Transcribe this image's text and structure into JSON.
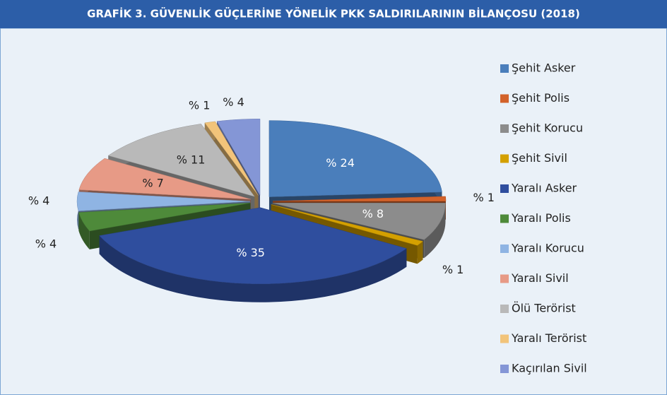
{
  "chart_data": {
    "type": "pie",
    "title": "GRAFİK 3. GÜVENLİK GÜÇLERİNE YÖNELİK PKK SALDIRILARININ BİLANÇOSU (2018)",
    "categories": [
      "Şehit Asker",
      "Şehit Polis",
      "Şehit Korucu",
      "Şehit Sivil",
      "Yaralı Asker",
      "Yaralı Polis",
      "Yaralı Korucu",
      "Yaralı Sivil",
      "Ölü Terörist",
      "Yaralı Terörist",
      "Kaçırılan Sivil"
    ],
    "values": [
      24,
      1,
      8,
      1,
      35,
      4,
      4,
      7,
      11,
      1,
      4
    ],
    "value_labels": [
      "% 24",
      "% 1",
      "% 8",
      "% 1",
      "% 35",
      "% 4",
      "% 4",
      "% 7",
      "% 11",
      "% 1",
      "% 4"
    ],
    "colors": [
      "#4a7ebb",
      "#d3622a",
      "#8c8c8c",
      "#d4a000",
      "#2f4e9e",
      "#4e8a3a",
      "#8fb4e3",
      "#e79a86",
      "#b9b9b9",
      "#f2c47a",
      "#8496d6"
    ],
    "legend": "right"
  }
}
